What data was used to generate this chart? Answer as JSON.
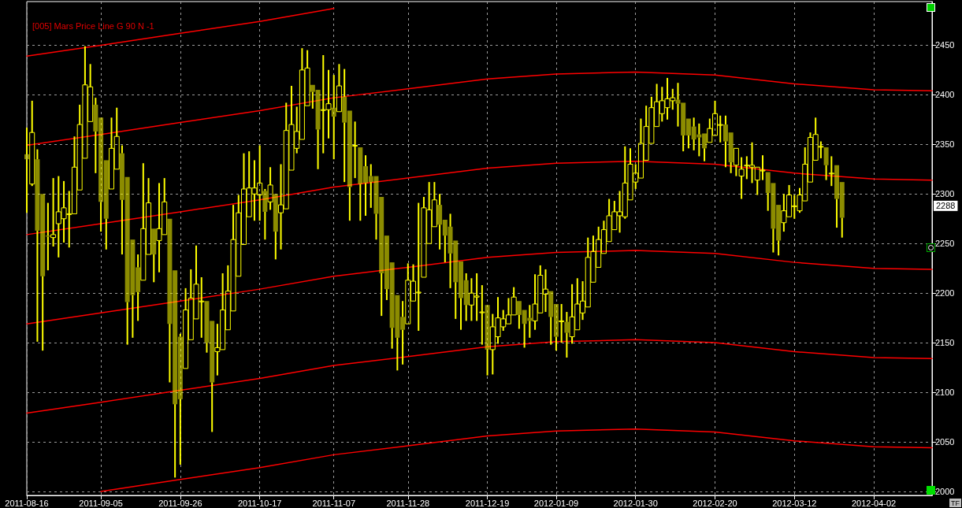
{
  "chart_data": {
    "type": "candlestick",
    "title": "[005] Mars Price Line G 90 N -1",
    "categories": [
      "2011-08-16",
      null,
      null,
      null,
      null,
      null,
      null,
      null,
      null,
      null,
      null,
      null,
      null,
      null,
      "2011-09-05",
      null,
      null,
      null,
      null,
      null,
      null,
      null,
      null,
      null,
      null,
      null,
      null,
      null,
      null,
      "2011-09-26",
      null,
      null,
      null,
      null,
      null,
      null,
      null,
      null,
      null,
      null,
      null,
      null,
      null,
      null,
      "2011-10-17",
      null,
      null,
      null,
      null,
      null,
      null,
      null,
      null,
      null,
      null,
      null,
      null,
      null,
      "2011-11-07",
      null,
      null,
      null,
      null,
      null,
      null,
      null,
      null,
      null,
      null,
      null,
      null,
      null,
      "2011-11-28",
      null,
      null,
      null,
      null,
      null,
      null,
      null,
      null,
      null,
      null,
      null,
      null,
      null,
      null,
      "2011-12-19",
      null,
      null,
      null,
      null,
      null,
      null,
      null,
      null,
      null,
      null,
      null,
      null,
      "2012-01-09",
      null,
      null,
      null,
      null,
      null,
      null,
      null,
      null,
      null,
      null,
      null,
      null,
      null,
      null,
      "2012-01-30",
      null,
      null,
      null,
      null,
      null,
      null,
      null,
      null,
      null,
      null,
      null,
      null,
      null,
      null,
      "2012-02-20",
      null,
      null,
      null,
      null,
      null,
      null,
      null,
      null,
      null,
      null,
      null,
      null,
      null,
      null,
      "2012-03-12",
      null,
      null,
      null,
      null,
      null,
      null,
      null,
      null,
      null,
      null,
      null,
      null,
      null,
      null,
      "2012-04-02",
      null,
      null,
      null,
      null,
      null,
      null,
      null,
      null,
      null,
      null,
      null
    ],
    "color": "#ffff00",
    "ohlc": [
      [
        2340,
        2367,
        2281,
        2335
      ],
      [
        2310,
        2394,
        2308,
        2362
      ],
      [
        2335,
        2345,
        2151,
        2263
      ],
      [
        2300,
        2300,
        2142,
        2217
      ],
      [
        2258,
        2291,
        2223,
        2257
      ],
      [
        2256,
        2316,
        2247,
        2259
      ],
      [
        2270,
        2318,
        2236,
        2282
      ],
      [
        2275,
        2313,
        2251,
        2286
      ],
      [
        2280,
        2303,
        2246,
        2280
      ],
      [
        2280,
        2358,
        2280,
        2327
      ],
      [
        2304,
        2390,
        2303,
        2370
      ],
      [
        2336,
        2449,
        2336,
        2410
      ],
      [
        2373,
        2431,
        2373,
        2408
      ],
      [
        2390,
        2397,
        2321,
        2363
      ],
      [
        2377,
        2377,
        2262,
        2292
      ],
      [
        2334,
        2335,
        2244,
        2275
      ],
      [
        2305,
        2377,
        2305,
        2346
      ],
      [
        2325,
        2387,
        2325,
        2358
      ],
      [
        2341,
        2349,
        2239,
        2294
      ],
      [
        2317,
        2318,
        2148,
        2191
      ],
      [
        2254,
        2255,
        2155,
        2198
      ],
      [
        2226,
        2239,
        2172,
        2201
      ],
      [
        2213,
        2331,
        2213,
        2265
      ],
      [
        2239,
        2316,
        2239,
        2291
      ],
      [
        2265,
        2265,
        2211,
        2239
      ],
      [
        2253,
        2311,
        2221,
        2265
      ],
      [
        2259,
        2316,
        2259,
        2292
      ],
      [
        2275,
        2275,
        2110,
        2169
      ],
      [
        2223,
        2223,
        2014,
        2088
      ],
      [
        2156,
        2159,
        2027,
        2093
      ],
      [
        2124,
        2205,
        2124,
        2183
      ],
      [
        2153,
        2224,
        2153,
        2195
      ],
      [
        2174,
        2248,
        2174,
        2209
      ],
      [
        2192,
        2216,
        2155,
        2192
      ],
      [
        2192,
        2192,
        2140,
        2150
      ],
      [
        2172,
        2172,
        2060,
        2110
      ],
      [
        2141,
        2169,
        2117,
        2145
      ],
      [
        2143,
        2220,
        2142,
        2183
      ],
      [
        2163,
        2228,
        2163,
        2202
      ],
      [
        2182,
        2289,
        2182,
        2254
      ],
      [
        2217,
        2299,
        2217,
        2281
      ],
      [
        2249,
        2341,
        2249,
        2305
      ],
      [
        2277,
        2343,
        2277,
        2306
      ],
      [
        2300,
        2334,
        2273,
        2306
      ],
      [
        2299,
        2349,
        2273,
        2311
      ],
      [
        2303,
        2305,
        2254,
        2282
      ],
      [
        2292,
        2327,
        2284,
        2309
      ],
      [
        2300,
        2300,
        2234,
        2262
      ],
      [
        2281,
        2330,
        2244,
        2289
      ],
      [
        2285,
        2392,
        2284,
        2364
      ],
      [
        2324,
        2409,
        2324,
        2370
      ],
      [
        2346,
        2388,
        2341,
        2363
      ],
      [
        2355,
        2447,
        2355,
        2425
      ],
      [
        2389,
        2445,
        2389,
        2427
      ],
      [
        2410,
        2411,
        2386,
        2403
      ],
      [
        2405,
        2406,
        2325,
        2365
      ],
      [
        2385,
        2440,
        2341,
        2385
      ],
      [
        2385,
        2425,
        2356,
        2391
      ],
      [
        2387,
        2420,
        2335,
        2378
      ],
      [
        2383,
        2431,
        2383,
        2409
      ],
      [
        2398,
        2426,
        2312,
        2372
      ],
      [
        2384,
        2384,
        2273,
        2307
      ],
      [
        2349,
        2373,
        2316,
        2349
      ],
      [
        2347,
        2348,
        2273,
        2310
      ],
      [
        2328,
        2339,
        2278,
        2311
      ],
      [
        2318,
        2330,
        2286,
        2312
      ],
      [
        2318,
        2318,
        2254,
        2280
      ],
      [
        2297,
        2297,
        2177,
        2220
      ],
      [
        2258,
        2258,
        2193,
        2204
      ],
      [
        2231,
        2231,
        2144,
        2165
      ],
      [
        2198,
        2198,
        2122,
        2155
      ],
      [
        2176,
        2192,
        2128,
        2163
      ],
      [
        2169,
        2230,
        2169,
        2213
      ],
      [
        2192,
        2229,
        2192,
        2212
      ],
      [
        2201,
        2291,
        2162,
        2201
      ],
      [
        2216,
        2297,
        2216,
        2286
      ],
      [
        2250,
        2312,
        2250,
        2284
      ],
      [
        2267,
        2312,
        2267,
        2294
      ],
      [
        2289,
        2300,
        2244,
        2269
      ],
      [
        2274,
        2275,
        2231,
        2258
      ],
      [
        2267,
        2280,
        2205,
        2240
      ],
      [
        2253,
        2254,
        2174,
        2211
      ],
      [
        2232,
        2232,
        2163,
        2195
      ],
      [
        2213,
        2220,
        2172,
        2188
      ],
      [
        2188,
        2215,
        2172,
        2200
      ],
      [
        2196,
        2220,
        2172,
        2197
      ],
      [
        2181,
        2208,
        2148,
        2181
      ],
      [
        2188,
        2188,
        2117,
        2143
      ],
      [
        2143,
        2179,
        2118,
        2166
      ],
      [
        2156,
        2196,
        2149,
        2175
      ],
      [
        2166,
        2183,
        2162,
        2174
      ],
      [
        2169,
        2195,
        2169,
        2178
      ],
      [
        2178,
        2206,
        2178,
        2196
      ],
      [
        2192,
        2192,
        2164,
        2178
      ],
      [
        2183,
        2183,
        2145,
        2169
      ],
      [
        2175,
        2188,
        2155,
        2172
      ],
      [
        2172,
        2219,
        2163,
        2189
      ],
      [
        2180,
        2228,
        2180,
        2218
      ],
      [
        2199,
        2224,
        2181,
        2204
      ],
      [
        2202,
        2202,
        2148,
        2176
      ],
      [
        2189,
        2190,
        2142,
        2156
      ],
      [
        2172,
        2189,
        2150,
        2172
      ],
      [
        2171,
        2181,
        2135,
        2160
      ],
      [
        2156,
        2209,
        2149,
        2176
      ],
      [
        2163,
        2215,
        2163,
        2189
      ],
      [
        2180,
        2212,
        2173,
        2192
      ],
      [
        2186,
        2256,
        2186,
        2236
      ],
      [
        2211,
        2258,
        2211,
        2242
      ],
      [
        2226,
        2267,
        2226,
        2254
      ],
      [
        2240,
        2273,
        2240,
        2264
      ],
      [
        2252,
        2295,
        2252,
        2278
      ],
      [
        2264,
        2293,
        2264,
        2282
      ],
      [
        2278,
        2303,
        2261,
        2282
      ],
      [
        2277,
        2348,
        2275,
        2311
      ],
      [
        2294,
        2346,
        2294,
        2330
      ],
      [
        2312,
        2330,
        2305,
        2321
      ],
      [
        2316,
        2376,
        2316,
        2351
      ],
      [
        2334,
        2389,
        2334,
        2368
      ],
      [
        2351,
        2398,
        2351,
        2387
      ],
      [
        2368,
        2411,
        2368,
        2393
      ],
      [
        2381,
        2408,
        2373,
        2394
      ],
      [
        2387,
        2417,
        2375,
        2396
      ],
      [
        2394,
        2406,
        2385,
        2397
      ],
      [
        2395,
        2412,
        2368,
        2391
      ],
      [
        2392,
        2392,
        2343,
        2359
      ],
      [
        2376,
        2376,
        2346,
        2359
      ],
      [
        2368,
        2377,
        2344,
        2355
      ],
      [
        2360,
        2371,
        2338,
        2357
      ],
      [
        2361,
        2362,
        2333,
        2346
      ],
      [
        2352,
        2376,
        2351,
        2366
      ],
      [
        2359,
        2394,
        2359,
        2381
      ],
      [
        2370,
        2379,
        2352,
        2370
      ],
      [
        2370,
        2379,
        2327,
        2353
      ],
      [
        2362,
        2362,
        2321,
        2332
      ],
      [
        2329,
        2347,
        2318,
        2346
      ],
      [
        2318,
        2337,
        2295,
        2325
      ],
      [
        2329,
        2338,
        2315,
        2329
      ],
      [
        2327,
        2352,
        2311,
        2329
      ],
      [
        2314,
        2328,
        2299,
        2327
      ],
      [
        2324,
        2339,
        2314,
        2324
      ],
      [
        2322,
        2323,
        2283,
        2301
      ],
      [
        2311,
        2312,
        2241,
        2265
      ],
      [
        2289,
        2289,
        2238,
        2253
      ],
      [
        2271,
        2300,
        2262,
        2283
      ],
      [
        2277,
        2309,
        2277,
        2299
      ],
      [
        2288,
        2299,
        2275,
        2288
      ],
      [
        2283,
        2306,
        2281,
        2299
      ],
      [
        2293,
        2347,
        2293,
        2330
      ],
      [
        2312,
        2362,
        2311,
        2357
      ],
      [
        2334,
        2377,
        2334,
        2360
      ],
      [
        2348,
        2353,
        2336,
        2348
      ],
      [
        2347,
        2347,
        2314,
        2329
      ],
      [
        2321,
        2338,
        2308,
        2321
      ],
      [
        2329,
        2330,
        2266,
        2295
      ],
      [
        2312,
        2312,
        2256,
        2276
      ],
      null,
      null,
      null,
      null,
      null,
      null,
      null,
      null,
      null,
      null,
      null,
      null,
      null,
      null,
      null,
      null,
      null
    ],
    "series": [
      {
        "type": "line",
        "color": "#ff0000",
        "values": [
          2439,
          null,
          null,
          null,
          null,
          null,
          null,
          null,
          null,
          null,
          null,
          null,
          null,
          null,
          2450,
          null,
          null,
          null,
          null,
          null,
          null,
          null,
          null,
          null,
          null,
          null,
          null,
          null,
          null,
          2462,
          null,
          null,
          null,
          null,
          null,
          null,
          null,
          null,
          null,
          null,
          null,
          null,
          null,
          null,
          2474,
          null,
          null,
          null,
          null,
          null,
          null,
          null,
          null,
          null,
          null,
          null,
          null,
          null,
          2487,
          null,
          null,
          null,
          null,
          null,
          null,
          null,
          null,
          null,
          null,
          null,
          null,
          null,
          null,
          null,
          null,
          null,
          null,
          null,
          null,
          null,
          null,
          null,
          null,
          null,
          null,
          null,
          null,
          null,
          null,
          null,
          null,
          null,
          null,
          null,
          null,
          null,
          null,
          null,
          null,
          null,
          null,
          null,
          null,
          null,
          null,
          null,
          null,
          null,
          null,
          null,
          null,
          null,
          null,
          null,
          null,
          null,
          null,
          null,
          null,
          null,
          null,
          null,
          null,
          null,
          null,
          null,
          null,
          null,
          null,
          null,
          null,
          null,
          null,
          null,
          null,
          null,
          null,
          null,
          null,
          null,
          null,
          null,
          null,
          null,
          null,
          null,
          null,
          null,
          null,
          null,
          null,
          null,
          null,
          null,
          null,
          null,
          null,
          null,
          null,
          null,
          null,
          null,
          null,
          null,
          null,
          null,
          null,
          null,
          null,
          null,
          null,
          null
        ]
      },
      {
        "type": "line",
        "color": "#ff0000",
        "values": [
          2349,
          null,
          null,
          null,
          null,
          null,
          null,
          null,
          null,
          null,
          null,
          null,
          null,
          null,
          2360,
          null,
          null,
          null,
          null,
          null,
          null,
          null,
          null,
          null,
          null,
          null,
          null,
          null,
          null,
          2372,
          null,
          null,
          null,
          null,
          null,
          null,
          null,
          null,
          null,
          null,
          null,
          null,
          null,
          null,
          2384,
          null,
          null,
          null,
          null,
          null,
          null,
          null,
          null,
          null,
          null,
          null,
          null,
          null,
          2397,
          null,
          null,
          null,
          null,
          null,
          null,
          null,
          null,
          null,
          null,
          null,
          null,
          null,
          2406,
          null,
          null,
          null,
          null,
          null,
          null,
          null,
          null,
          null,
          null,
          null,
          null,
          null,
          null,
          2416,
          null,
          null,
          null,
          null,
          null,
          null,
          null,
          null,
          null,
          null,
          null,
          null,
          2421,
          null,
          null,
          null,
          null,
          null,
          null,
          null,
          null,
          null,
          null,
          null,
          null,
          null,
          null,
          2423,
          null,
          null,
          null,
          null,
          null,
          null,
          null,
          null,
          null,
          null,
          null,
          null,
          null,
          null,
          2420,
          null,
          null,
          null,
          null,
          null,
          null,
          null,
          null,
          null,
          null,
          null,
          null,
          null,
          null,
          2411,
          null,
          null,
          null,
          null,
          null,
          null,
          null,
          null,
          null,
          null,
          null,
          null,
          null,
          null,
          2405,
          null,
          null,
          null,
          null,
          null,
          null,
          null,
          null,
          null,
          null,
          2404
        ]
      },
      {
        "type": "line",
        "color": "#ff0000",
        "values": [
          2259,
          null,
          null,
          null,
          null,
          null,
          null,
          null,
          null,
          null,
          null,
          null,
          null,
          null,
          2270,
          null,
          null,
          null,
          null,
          null,
          null,
          null,
          null,
          null,
          null,
          null,
          null,
          null,
          null,
          2282,
          null,
          null,
          null,
          null,
          null,
          null,
          null,
          null,
          null,
          null,
          null,
          null,
          null,
          null,
          2294,
          null,
          null,
          null,
          null,
          null,
          null,
          null,
          null,
          null,
          null,
          null,
          null,
          null,
          2307,
          null,
          null,
          null,
          null,
          null,
          null,
          null,
          null,
          null,
          null,
          null,
          null,
          null,
          2316,
          null,
          null,
          null,
          null,
          null,
          null,
          null,
          null,
          null,
          null,
          null,
          null,
          null,
          null,
          2326,
          null,
          null,
          null,
          null,
          null,
          null,
          null,
          null,
          null,
          null,
          null,
          null,
          2331,
          null,
          null,
          null,
          null,
          null,
          null,
          null,
          null,
          null,
          null,
          null,
          null,
          null,
          null,
          2333,
          null,
          null,
          null,
          null,
          null,
          null,
          null,
          null,
          null,
          null,
          null,
          null,
          null,
          null,
          2330,
          null,
          null,
          null,
          null,
          null,
          null,
          null,
          null,
          null,
          null,
          null,
          null,
          null,
          null,
          2321,
          null,
          null,
          null,
          null,
          null,
          null,
          null,
          null,
          null,
          null,
          null,
          null,
          null,
          null,
          2315,
          null,
          null,
          null,
          null,
          null,
          null,
          null,
          null,
          null,
          null,
          2314
        ]
      },
      {
        "type": "line",
        "color": "#ff0000",
        "values": [
          2169,
          null,
          null,
          null,
          null,
          null,
          null,
          null,
          null,
          null,
          null,
          null,
          null,
          null,
          2180,
          null,
          null,
          null,
          null,
          null,
          null,
          null,
          null,
          null,
          null,
          null,
          null,
          null,
          null,
          2192,
          null,
          null,
          null,
          null,
          null,
          null,
          null,
          null,
          null,
          null,
          null,
          null,
          null,
          null,
          2204,
          null,
          null,
          null,
          null,
          null,
          null,
          null,
          null,
          null,
          null,
          null,
          null,
          null,
          2217,
          null,
          null,
          null,
          null,
          null,
          null,
          null,
          null,
          null,
          null,
          null,
          null,
          null,
          2226,
          null,
          null,
          null,
          null,
          null,
          null,
          null,
          null,
          null,
          null,
          null,
          null,
          null,
          null,
          2236,
          null,
          null,
          null,
          null,
          null,
          null,
          null,
          null,
          null,
          null,
          null,
          null,
          2241,
          null,
          null,
          null,
          null,
          null,
          null,
          null,
          null,
          null,
          null,
          null,
          null,
          null,
          null,
          2243,
          null,
          null,
          null,
          null,
          null,
          null,
          null,
          null,
          null,
          null,
          null,
          null,
          null,
          null,
          2240,
          null,
          null,
          null,
          null,
          null,
          null,
          null,
          null,
          null,
          null,
          null,
          null,
          null,
          null,
          2231,
          null,
          null,
          null,
          null,
          null,
          null,
          null,
          null,
          null,
          null,
          null,
          null,
          null,
          null,
          2225,
          null,
          null,
          null,
          null,
          null,
          null,
          null,
          null,
          null,
          null,
          2224
        ]
      },
      {
        "type": "line",
        "color": "#ff0000",
        "values": [
          2079,
          null,
          null,
          null,
          null,
          null,
          null,
          null,
          null,
          null,
          null,
          null,
          null,
          null,
          2090,
          null,
          null,
          null,
          null,
          null,
          null,
          null,
          null,
          null,
          null,
          null,
          null,
          null,
          null,
          2102,
          null,
          null,
          null,
          null,
          null,
          null,
          null,
          null,
          null,
          null,
          null,
          null,
          null,
          null,
          2114,
          null,
          null,
          null,
          null,
          null,
          null,
          null,
          null,
          null,
          null,
          null,
          null,
          null,
          2127,
          null,
          null,
          null,
          null,
          null,
          null,
          null,
          null,
          null,
          null,
          null,
          null,
          null,
          2136,
          null,
          null,
          null,
          null,
          null,
          null,
          null,
          null,
          null,
          null,
          null,
          null,
          null,
          null,
          2146,
          null,
          null,
          null,
          null,
          null,
          null,
          null,
          null,
          null,
          null,
          null,
          null,
          2151,
          null,
          null,
          null,
          null,
          null,
          null,
          null,
          null,
          null,
          null,
          null,
          null,
          null,
          null,
          2153,
          null,
          null,
          null,
          null,
          null,
          null,
          null,
          null,
          null,
          null,
          null,
          null,
          null,
          null,
          2150,
          null,
          null,
          null,
          null,
          null,
          null,
          null,
          null,
          null,
          null,
          null,
          null,
          null,
          null,
          2141,
          null,
          null,
          null,
          null,
          null,
          null,
          null,
          null,
          null,
          null,
          null,
          null,
          null,
          null,
          2135,
          null,
          null,
          null,
          null,
          null,
          null,
          null,
          null,
          null,
          null,
          2134
        ]
      },
      {
        "type": "line",
        "color": "#ff0000",
        "values": [
          null,
          null,
          null,
          null,
          null,
          null,
          null,
          null,
          null,
          null,
          null,
          null,
          null,
          null,
          2000,
          null,
          null,
          null,
          null,
          null,
          null,
          null,
          null,
          null,
          null,
          null,
          null,
          null,
          null,
          2012,
          null,
          null,
          null,
          null,
          null,
          null,
          null,
          null,
          null,
          null,
          null,
          null,
          null,
          null,
          2024,
          null,
          null,
          null,
          null,
          null,
          null,
          null,
          null,
          null,
          null,
          null,
          null,
          null,
          2037,
          null,
          null,
          null,
          null,
          null,
          null,
          null,
          null,
          null,
          null,
          null,
          null,
          null,
          2046,
          null,
          null,
          null,
          null,
          null,
          null,
          null,
          null,
          null,
          null,
          null,
          null,
          null,
          null,
          2056,
          null,
          null,
          null,
          null,
          null,
          null,
          null,
          null,
          null,
          null,
          null,
          null,
          2061,
          null,
          null,
          null,
          null,
          null,
          null,
          null,
          null,
          null,
          null,
          null,
          null,
          null,
          null,
          2063,
          null,
          null,
          null,
          null,
          null,
          null,
          null,
          null,
          null,
          null,
          null,
          null,
          null,
          null,
          2060,
          null,
          null,
          null,
          null,
          null,
          null,
          null,
          null,
          null,
          null,
          null,
          null,
          null,
          null,
          2051,
          null,
          null,
          null,
          null,
          null,
          null,
          null,
          null,
          null,
          null,
          null,
          null,
          null,
          null,
          2045,
          null,
          null,
          null,
          null,
          null,
          null,
          null,
          null,
          null,
          null,
          2044
        ]
      }
    ],
    "ylim": [
      1996,
      2494
    ],
    "yticks": [
      2000,
      2050,
      2100,
      2150,
      2200,
      2250,
      2300,
      2350,
      2400,
      2450
    ],
    "grid": true,
    "annotations": [
      {
        "text": "2288",
        "y": 2288
      },
      "TF"
    ]
  }
}
